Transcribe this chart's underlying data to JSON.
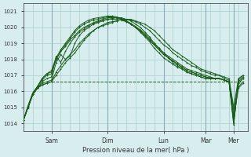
{
  "background_color": "#d8eeee",
  "grid_color": "#aacccc",
  "line_color": "#1a5c1a",
  "marker_color": "#1a5c1a",
  "xlabel": "Pression niveau de la mer( hPa )",
  "ylim": [
    1013.5,
    1021.5
  ],
  "yticks": [
    1014,
    1015,
    1016,
    1017,
    1018,
    1019,
    1020,
    1021
  ],
  "x_day_labels": [
    "Sam",
    "Dim",
    "Lun",
    "Mar",
    "Mer"
  ],
  "x_day_positions": [
    24,
    72,
    120,
    156,
    180
  ],
  "total_points": 192,
  "curves": [
    {
      "points": [
        0,
        1014.2,
        4,
        1015.0,
        8,
        1015.8,
        12,
        1016.2,
        16,
        1016.4,
        20,
        1016.5,
        24,
        1016.6,
        28,
        1017.2,
        32,
        1017.6,
        36,
        1018.0,
        40,
        1018.3,
        44,
        1018.6,
        48,
        1019.0,
        52,
        1019.3,
        56,
        1019.6,
        60,
        1019.8,
        64,
        1020.0,
        68,
        1020.1,
        72,
        1020.2,
        76,
        1020.3,
        80,
        1020.4,
        84,
        1020.5,
        88,
        1020.5,
        92,
        1020.5,
        96,
        1020.4,
        100,
        1020.3,
        104,
        1020.2,
        108,
        1020.0,
        112,
        1019.8,
        116,
        1019.5,
        120,
        1019.2,
        124,
        1018.9,
        128,
        1018.6,
        132,
        1018.4,
        136,
        1018.2,
        140,
        1018.0,
        144,
        1017.8,
        148,
        1017.6,
        152,
        1017.4,
        156,
        1017.3,
        160,
        1017.2,
        164,
        1017.1,
        168,
        1017.0,
        172,
        1016.9,
        176,
        1016.8,
        180,
        1015.0,
        184,
        1016.8,
        188,
        1017.0
      ],
      "dash": false
    },
    {
      "points": [
        0,
        1014.2,
        4,
        1015.0,
        8,
        1015.8,
        12,
        1016.2,
        16,
        1016.4,
        20,
        1016.5,
        24,
        1016.6,
        28,
        1017.0,
        32,
        1017.4,
        36,
        1017.8,
        40,
        1018.1,
        44,
        1018.4,
        48,
        1018.8,
        52,
        1019.2,
        56,
        1019.5,
        60,
        1019.8,
        64,
        1020.0,
        68,
        1020.15,
        72,
        1020.3,
        76,
        1020.35,
        80,
        1020.4,
        84,
        1020.5,
        88,
        1020.5,
        92,
        1020.45,
        96,
        1020.35,
        100,
        1020.2,
        104,
        1020.0,
        108,
        1019.8,
        112,
        1019.5,
        116,
        1019.2,
        120,
        1018.9,
        124,
        1018.7,
        128,
        1018.4,
        132,
        1018.2,
        136,
        1018.0,
        140,
        1017.8,
        144,
        1017.6,
        148,
        1017.5,
        152,
        1017.3,
        156,
        1017.2,
        160,
        1017.1,
        164,
        1017.0,
        168,
        1017.0,
        172,
        1016.8,
        176,
        1016.7,
        180,
        1014.8,
        184,
        1016.5,
        188,
        1016.8
      ],
      "dash": false
    },
    {
      "points": [
        0,
        1014.2,
        4,
        1015.0,
        8,
        1015.8,
        12,
        1016.2,
        16,
        1016.5,
        20,
        1016.6,
        24,
        1016.7,
        28,
        1017.8,
        32,
        1018.3,
        36,
        1018.0,
        40,
        1018.2,
        44,
        1019.0,
        48,
        1019.5,
        52,
        1019.8,
        56,
        1020.0,
        60,
        1020.2,
        64,
        1020.3,
        68,
        1020.4,
        72,
        1020.5,
        76,
        1020.55,
        80,
        1020.6,
        84,
        1020.6,
        88,
        1020.5,
        92,
        1020.4,
        96,
        1020.2,
        100,
        1020.0,
        104,
        1019.7,
        108,
        1019.4,
        112,
        1019.0,
        116,
        1018.7,
        120,
        1018.4,
        124,
        1018.1,
        128,
        1017.8,
        132,
        1017.6,
        136,
        1017.4,
        140,
        1017.2,
        144,
        1017.1,
        148,
        1017.0,
        152,
        1016.9,
        156,
        1016.8,
        160,
        1016.8,
        164,
        1016.8,
        168,
        1016.8,
        172,
        1016.7,
        176,
        1016.6,
        180,
        1014.5,
        184,
        1016.3,
        188,
        1016.6
      ],
      "dash": false
    },
    {
      "points": [
        0,
        1014.2,
        4,
        1015.0,
        8,
        1015.8,
        12,
        1016.2,
        16,
        1016.6,
        20,
        1016.8,
        24,
        1016.9,
        28,
        1018.2,
        32,
        1017.8,
        36,
        1018.5,
        40,
        1019.0,
        44,
        1019.4,
        48,
        1019.7,
        52,
        1019.9,
        56,
        1020.1,
        60,
        1020.3,
        64,
        1020.4,
        68,
        1020.5,
        72,
        1020.6,
        76,
        1020.6,
        80,
        1020.6,
        84,
        1020.55,
        88,
        1020.4,
        92,
        1020.2,
        96,
        1020.0,
        100,
        1019.7,
        104,
        1019.4,
        108,
        1019.1,
        112,
        1018.7,
        116,
        1018.4,
        120,
        1018.1,
        124,
        1017.9,
        128,
        1017.7,
        132,
        1017.5,
        136,
        1017.4,
        140,
        1017.2,
        144,
        1017.1,
        148,
        1017.0,
        152,
        1016.9,
        156,
        1016.8,
        160,
        1016.8,
        164,
        1016.8,
        168,
        1016.8,
        172,
        1016.7,
        176,
        1016.6,
        180,
        1014.3,
        184,
        1016.2,
        188,
        1016.5
      ],
      "dash": false
    },
    {
      "points": [
        0,
        1014.2,
        4,
        1015.0,
        8,
        1015.8,
        12,
        1016.3,
        16,
        1016.7,
        20,
        1017.0,
        24,
        1017.1,
        28,
        1018.0,
        32,
        1018.5,
        36,
        1018.8,
        40,
        1019.2,
        44,
        1019.5,
        48,
        1019.8,
        52,
        1020.0,
        56,
        1020.15,
        60,
        1020.25,
        64,
        1020.35,
        68,
        1020.45,
        72,
        1020.5,
        76,
        1020.5,
        80,
        1020.5,
        84,
        1020.45,
        88,
        1020.35,
        92,
        1020.2,
        96,
        1020.0,
        100,
        1019.75,
        104,
        1019.5,
        108,
        1019.2,
        112,
        1018.9,
        116,
        1018.6,
        120,
        1018.3,
        124,
        1018.1,
        128,
        1017.9,
        132,
        1017.7,
        136,
        1017.5,
        140,
        1017.3,
        144,
        1017.2,
        148,
        1017.1,
        152,
        1017.0,
        156,
        1016.9,
        160,
        1016.8,
        164,
        1016.8,
        168,
        1016.8,
        172,
        1016.7,
        176,
        1016.6,
        180,
        1014.1,
        184,
        1016.5,
        188,
        1016.8
      ],
      "dash": false
    },
    {
      "points": [
        0,
        1014.2,
        4,
        1015.1,
        8,
        1015.9,
        12,
        1016.3,
        16,
        1016.8,
        20,
        1017.1,
        24,
        1017.2,
        28,
        1018.0,
        32,
        1018.5,
        36,
        1018.9,
        40,
        1019.3,
        44,
        1019.7,
        48,
        1020.0,
        52,
        1020.2,
        56,
        1020.35,
        60,
        1020.45,
        64,
        1020.5,
        68,
        1020.6,
        72,
        1020.65,
        76,
        1020.65,
        80,
        1020.6,
        84,
        1020.5,
        88,
        1020.35,
        92,
        1020.2,
        96,
        1020.0,
        100,
        1019.8,
        104,
        1019.5,
        108,
        1019.2,
        112,
        1018.9,
        116,
        1018.6,
        120,
        1018.3,
        124,
        1018.1,
        128,
        1017.9,
        132,
        1017.7,
        136,
        1017.5,
        140,
        1017.3,
        144,
        1017.2,
        148,
        1017.1,
        152,
        1017.0,
        156,
        1016.9,
        160,
        1016.85,
        164,
        1016.8,
        168,
        1016.8,
        172,
        1016.7,
        176,
        1016.6,
        180,
        1014.0,
        184,
        1016.6,
        188,
        1016.9
      ],
      "dash": false
    },
    {
      "points": [
        0,
        1014.2,
        4,
        1015.1,
        8,
        1015.9,
        12,
        1016.3,
        16,
        1016.8,
        20,
        1017.1,
        24,
        1017.3,
        28,
        1018.1,
        32,
        1018.6,
        36,
        1019.0,
        40,
        1019.4,
        44,
        1019.8,
        48,
        1020.1,
        52,
        1020.3,
        56,
        1020.45,
        60,
        1020.55,
        64,
        1020.6,
        68,
        1020.65,
        72,
        1020.7,
        76,
        1020.7,
        80,
        1020.65,
        84,
        1020.55,
        88,
        1020.4,
        92,
        1020.25,
        96,
        1020.05,
        100,
        1019.85,
        104,
        1019.6,
        108,
        1019.3,
        112,
        1019.0,
        116,
        1018.7,
        120,
        1018.4,
        124,
        1018.2,
        128,
        1018.0,
        132,
        1017.8,
        136,
        1017.6,
        140,
        1017.4,
        144,
        1017.3,
        148,
        1017.2,
        152,
        1017.1,
        156,
        1017.0,
        160,
        1016.9,
        164,
        1016.8,
        168,
        1016.8,
        172,
        1016.7,
        176,
        1016.6,
        180,
        1013.9,
        184,
        1016.7,
        188,
        1017.0
      ],
      "dash": false
    },
    {
      "points": [
        24,
        1016.6,
        48,
        1016.6,
        72,
        1016.6,
        96,
        1016.6,
        120,
        1016.6,
        144,
        1016.6,
        168,
        1016.6,
        180,
        1016.6,
        188,
        1016.6
      ],
      "dash": true
    }
  ]
}
